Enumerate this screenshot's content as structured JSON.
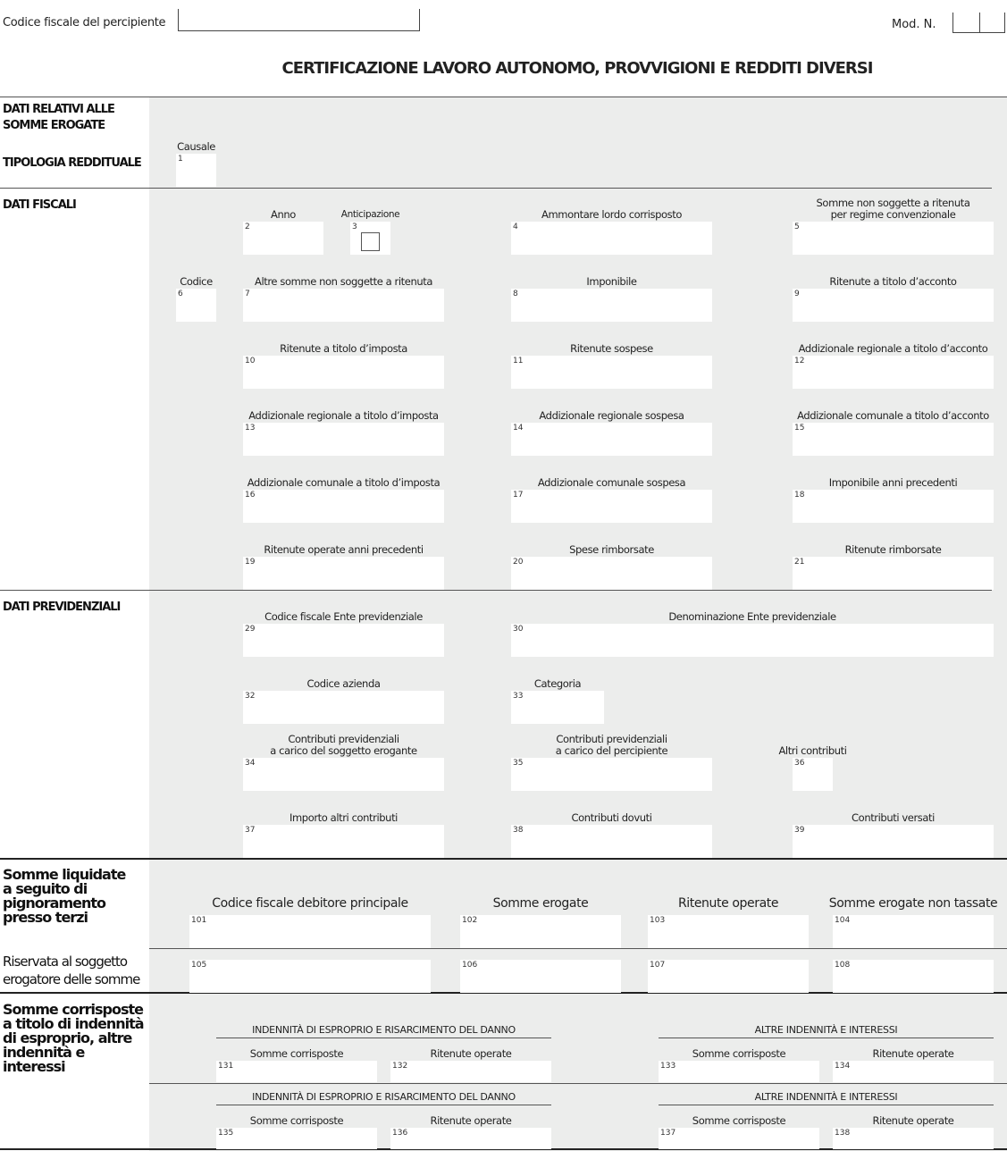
{
  "header": {
    "codice_fiscale_label": "Codice fiscale del percipiente",
    "codice_fiscale_value": "",
    "mod_label": "Mod. N.",
    "title": "CERTIFICAZIONE LAVORO AUTONOMO, PROVVIGIONI E REDDITI DIVERSI"
  },
  "sections": {
    "dati_relativi": "DATI RELATIVI ALLE SOMME EROGATE",
    "tipologia": "TIPOLOGIA REDDITUALE",
    "dati_fiscali": "DATI FISCALI",
    "dati_previdenziali": "DATI PREVIDENZIALI",
    "pignoramento": "Somme liquidate a seguito di pignoramento presso terzi",
    "riservata": "Riservata al soggetto erogatore delle somme",
    "indennita": "Somme corrisposte a titolo di indennità di esproprio, altre indennità e interessi"
  },
  "subheaders": {
    "esproprio": "INDENNITÀ DI ESPROPRIO E RISARCIMENTO DEL DANNO",
    "altre": "ALTRE INDENNITÀ E INTERESSI"
  },
  "fields": [
    {
      "n": "1",
      "label": "Causale"
    },
    {
      "n": "2",
      "label": "Anno"
    },
    {
      "n": "3",
      "label": "Anticipazione",
      "checkbox": true,
      "checked": false
    },
    {
      "n": "4",
      "label": "Ammontare lordo corrisposto"
    },
    {
      "n": "5",
      "label": "Somme non soggette a ritenuta\nper regime convenzionale"
    },
    {
      "n": "6",
      "label": "Codice"
    },
    {
      "n": "7",
      "label": "Altre somme non soggette a ritenuta"
    },
    {
      "n": "8",
      "label": "Imponibile"
    },
    {
      "n": "9",
      "label": "Ritenute a titolo d’acconto"
    },
    {
      "n": "10",
      "label": "Ritenute a titolo d’imposta"
    },
    {
      "n": "11",
      "label": "Ritenute sospese"
    },
    {
      "n": "12",
      "label": "Addizionale regionale a titolo d’acconto"
    },
    {
      "n": "13",
      "label": "Addizionale regionale a titolo d’imposta"
    },
    {
      "n": "14",
      "label": "Addizionale regionale sospesa"
    },
    {
      "n": "15",
      "label": "Addizionale comunale a titolo d’acconto"
    },
    {
      "n": "16",
      "label": "Addizionale comunale a titolo d’imposta"
    },
    {
      "n": "17",
      "label": "Addizionale comunale sospesa"
    },
    {
      "n": "18",
      "label": "Imponibile anni precedenti"
    },
    {
      "n": "19",
      "label": "Ritenute operate anni precedenti"
    },
    {
      "n": "20",
      "label": "Spese rimborsate"
    },
    {
      "n": "21",
      "label": "Ritenute rimborsate"
    },
    {
      "n": "29",
      "label": "Codice fiscale Ente previdenziale"
    },
    {
      "n": "30",
      "label": "Denominazione Ente previdenziale"
    },
    {
      "n": "32",
      "label": "Codice azienda"
    },
    {
      "n": "33",
      "label": "Categoria"
    },
    {
      "n": "34",
      "label": "Contributi previdenziali\na carico del soggetto erogante"
    },
    {
      "n": "35",
      "label": "Contributi previdenziali\na carico del percipiente"
    },
    {
      "n": "36",
      "label": "Altri contributi"
    },
    {
      "n": "37",
      "label": "Importo altri contributi"
    },
    {
      "n": "38",
      "label": "Contributi dovuti"
    },
    {
      "n": "39",
      "label": "Contributi versati"
    },
    {
      "n": "101",
      "label": "Codice fiscale debitore principale"
    },
    {
      "n": "102",
      "label": "Somme erogate"
    },
    {
      "n": "103",
      "label": "Ritenute operate"
    },
    {
      "n": "104",
      "label": "Somme erogate non tassate"
    },
    {
      "n": "105",
      "label": ""
    },
    {
      "n": "106",
      "label": ""
    },
    {
      "n": "107",
      "label": ""
    },
    {
      "n": "108",
      "label": ""
    },
    {
      "n": "131",
      "label": "Somme corrisposte"
    },
    {
      "n": "132",
      "label": "Ritenute operate"
    },
    {
      "n": "133",
      "label": "Somme corrisposte"
    },
    {
      "n": "134",
      "label": "Ritenute operate"
    },
    {
      "n": "135",
      "label": "Somme corrisposte"
    },
    {
      "n": "136",
      "label": "Ritenute operate"
    },
    {
      "n": "137",
      "label": "Somme corrisposte"
    },
    {
      "n": "138",
      "label": "Ritenute operate"
    }
  ]
}
